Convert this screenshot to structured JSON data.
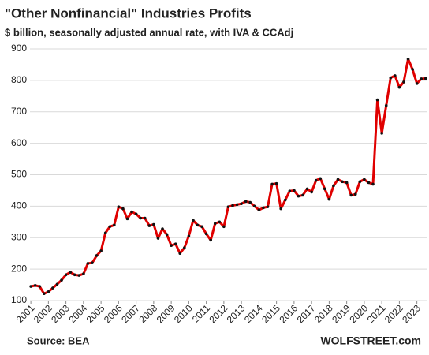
{
  "chart_data": {
    "type": "line",
    "title": "\"Other Nonfinancial\" Industries Profits",
    "subtitle": "$ billion, seasonally adjusted annual rate, with IVA & CCAdj",
    "source": "Source: BEA",
    "credit": "WOLFSTREET.com",
    "x": [
      2001,
      2001.25,
      2001.5,
      2001.75,
      2002,
      2002.25,
      2002.5,
      2002.75,
      2003,
      2003.25,
      2003.5,
      2003.75,
      2004,
      2004.25,
      2004.5,
      2004.75,
      2005,
      2005.25,
      2005.5,
      2005.75,
      2006,
      2006.25,
      2006.5,
      2006.75,
      2007,
      2007.25,
      2007.5,
      2007.75,
      2008,
      2008.25,
      2008.5,
      2008.75,
      2009,
      2009.25,
      2009.5,
      2009.75,
      2010,
      2010.25,
      2010.5,
      2010.75,
      2011,
      2011.25,
      2011.5,
      2011.75,
      2012,
      2012.25,
      2012.5,
      2012.75,
      2013,
      2013.25,
      2013.5,
      2013.75,
      2014,
      2014.25,
      2014.5,
      2014.75,
      2015,
      2015.25,
      2015.5,
      2015.75,
      2016,
      2016.25,
      2016.5,
      2016.75,
      2017,
      2017.25,
      2017.5,
      2017.75,
      2018,
      2018.25,
      2018.5,
      2018.75,
      2019,
      2019.25,
      2019.5,
      2019.75,
      2020,
      2020.25,
      2020.5,
      2020.75,
      2021,
      2021.25,
      2021.5,
      2021.75,
      2022,
      2022.25,
      2022.5,
      2022.75,
      2023,
      2023.25,
      2023.5
    ],
    "series": [
      {
        "name": "Profits",
        "color": "#e00000",
        "marker_color": "#111111",
        "values": [
          145,
          148,
          145,
          122,
          128,
          140,
          152,
          165,
          182,
          190,
          182,
          180,
          185,
          218,
          220,
          243,
          258,
          315,
          335,
          340,
          398,
          392,
          360,
          382,
          375,
          362,
          362,
          338,
          342,
          298,
          328,
          310,
          275,
          280,
          250,
          268,
          305,
          355,
          340,
          335,
          312,
          292,
          345,
          350,
          335,
          398,
          402,
          405,
          408,
          415,
          412,
          400,
          388,
          395,
          398,
          470,
          472,
          392,
          420,
          448,
          450,
          432,
          435,
          455,
          445,
          482,
          488,
          455,
          422,
          465,
          485,
          478,
          475,
          435,
          438,
          478,
          485,
          475,
          470,
          738,
          632,
          720,
          808,
          815,
          778,
          795,
          868,
          835,
          790,
          805,
          806
        ]
      }
    ],
    "xlim": [
      2000.95,
      2023.6
    ],
    "xticks": [
      2001,
      2002,
      2003,
      2004,
      2005,
      2006,
      2007,
      2008,
      2009,
      2010,
      2011,
      2012,
      2013,
      2014,
      2015,
      2016,
      2017,
      2018,
      2019,
      2020,
      2021,
      2022,
      2023
    ],
    "ylim": [
      100,
      900
    ],
    "yticks": [
      100,
      200,
      300,
      400,
      500,
      600,
      700,
      800,
      900
    ],
    "grid": true
  }
}
